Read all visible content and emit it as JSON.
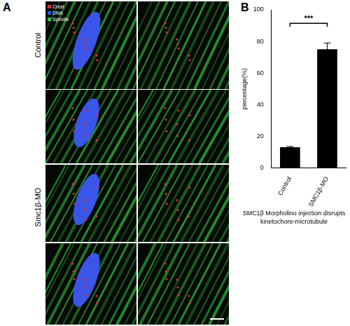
{
  "panel_a": {
    "label": "A",
    "row_labels": [
      "Control",
      "Smc1β-MO"
    ],
    "legend": [
      {
        "name": "Crest",
        "color": "#e03030"
      },
      {
        "name": "DNA",
        "color": "#3a55e8"
      },
      {
        "name": "Spindle",
        "color": "#2fc23a"
      }
    ]
  },
  "panel_b": {
    "label": "B"
  },
  "chart_data": {
    "type": "bar",
    "title": "SMC1β Morpholino injection disrupts kinetochore-microtubule",
    "y_label": "percentage(%)",
    "categories": [
      "Control",
      "SMC1β-MO"
    ],
    "values": [
      13,
      75
    ],
    "errors": [
      0.5,
      4
    ],
    "color": "#000000",
    "ylim": [
      0,
      100
    ],
    "yticks": [
      0,
      20,
      40,
      60,
      80,
      100
    ],
    "grid": false,
    "annotations": [
      {
        "text": "***",
        "between": [
          "Control",
          "SMC1β-MO"
        ]
      }
    ]
  }
}
